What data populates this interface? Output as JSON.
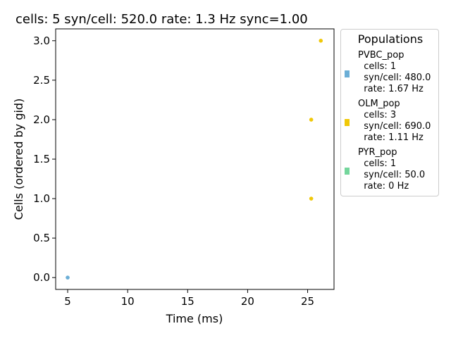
{
  "title": "cells: 5   syn/cell: 520.0   rate: 1.3 Hz    sync=1.00",
  "chart_data": {
    "type": "scatter",
    "xlabel": "Time (ms)",
    "ylabel": "Cells (ordered by gid)",
    "xlim": [
      4.0,
      27.2
    ],
    "ylim": [
      -0.15,
      3.15
    ],
    "xticks": [
      5,
      10,
      15,
      20,
      25
    ],
    "xtick_labels": [
      "5",
      "10",
      "15",
      "20",
      "25"
    ],
    "yticks": [
      0.0,
      0.5,
      1.0,
      1.5,
      2.0,
      2.5,
      3.0
    ],
    "ytick_labels": [
      "0.0",
      "0.5",
      "1.0",
      "1.5",
      "2.0",
      "2.5",
      "3.0"
    ],
    "grid": false,
    "legend_placement": "outside-right",
    "series": [
      {
        "name": "PVBC_pop",
        "color": "#6baed6",
        "points": [
          [
            5.0,
            0.0
          ]
        ]
      },
      {
        "name": "OLM_pop",
        "color": "#f0c808",
        "points": [
          [
            25.3,
            1.0
          ],
          [
            25.3,
            2.0
          ],
          [
            26.1,
            3.0
          ]
        ]
      },
      {
        "name": "PYR_pop",
        "color": "#74d69c",
        "points": []
      }
    ]
  },
  "legend": {
    "title": "Populations",
    "entries": [
      {
        "name": "PVBC_pop",
        "detail": "  cells: 1\n  syn/cell: 480.0\n  rate: 1.67 Hz",
        "color": "#6baed6"
      },
      {
        "name": "OLM_pop",
        "detail": "  cells: 3\n  syn/cell: 690.0\n  rate: 1.11 Hz",
        "color": "#f0c808"
      },
      {
        "name": "PYR_pop",
        "detail": "  cells: 1\n  syn/cell: 50.0\n  rate: 0 Hz",
        "color": "#74d69c"
      }
    ]
  }
}
